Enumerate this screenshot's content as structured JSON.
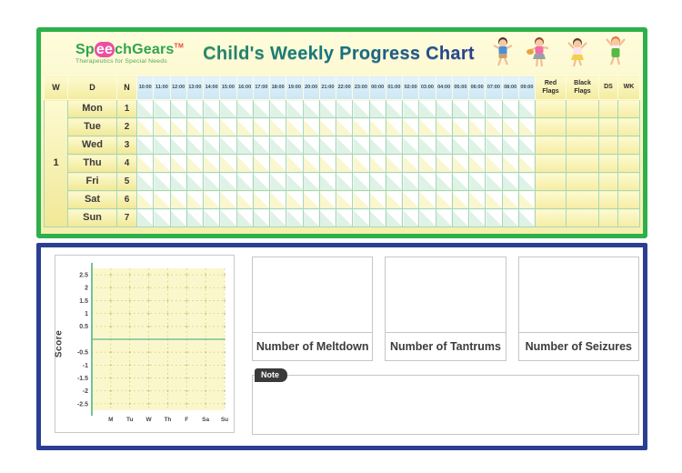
{
  "header": {
    "logo": {
      "brand_prefix": "Sp",
      "brand_mid": "ee",
      "brand_suffix": "chGears",
      "trademark": "TM",
      "tagline": "Therapeutics for Special Needs"
    },
    "title": "Child's Weekly Progress Chart"
  },
  "table": {
    "week_label": "1",
    "columns": {
      "week": "W",
      "day": "D",
      "number": "N",
      "times": [
        "10:00",
        "11:00",
        "12:00",
        "13:00",
        "14:00",
        "15:00",
        "16:00",
        "17:00",
        "18:00",
        "19:00",
        "20:00",
        "21:00",
        "22:00",
        "23:00",
        "00:00",
        "01:00",
        "02:00",
        "03:00",
        "04:00",
        "05:00",
        "06:00",
        "07:00",
        "08:00",
        "09:00"
      ],
      "red_flags": "Red Flags",
      "black_flags": "Black Flags",
      "ds": "DS",
      "wk": "WK"
    },
    "rows": [
      {
        "day": "Mon",
        "number": "1"
      },
      {
        "day": "Tue",
        "number": "2"
      },
      {
        "day": "Wed",
        "number": "3"
      },
      {
        "day": "Thu",
        "number": "4"
      },
      {
        "day": "Fri",
        "number": "5"
      },
      {
        "day": "Sat",
        "number": "6"
      },
      {
        "day": "Sun",
        "number": "7"
      }
    ]
  },
  "bottom": {
    "counters": [
      "Number of Meltdown",
      "Number of Tantrums",
      "Number of Seizures"
    ],
    "note_label": "Note"
  },
  "chart_data": {
    "type": "line",
    "title": "",
    "xlabel": "",
    "ylabel": "Score",
    "x": [
      "M",
      "Tu",
      "W",
      "Th",
      "F",
      "Sa",
      "Su"
    ],
    "y_tick_labels": [
      2.5,
      2,
      1.5,
      1,
      0.5,
      -0.5,
      -1,
      -1.5,
      -2,
      -2.5
    ],
    "y_grid_step": 0.5,
    "ylim": [
      -2.75,
      2.75
    ],
    "grid": true,
    "legend": false,
    "series": []
  },
  "colors": {
    "board_border_green": "#2DB04B",
    "summary_border_blue": "#2B3F92",
    "board_background_yellow": "#F9F3B8",
    "time_header_blue": "#D9EDF8",
    "grid_line_green": "#A6D7BC",
    "slot_green_tint": "#DFF2E6",
    "slot_yellow_tint": "#FAF6CE",
    "plot_background": "#FBF7CC",
    "plot_grid": "#D8CC80",
    "plot_axis_green": "#74C397",
    "note_tab_dark": "#3A3A3A",
    "logo_green": "#2FA44E",
    "logo_pink": "#EC4FA0",
    "title_gradient_start": "#2FA44E",
    "title_gradient_end": "#2B3990"
  }
}
